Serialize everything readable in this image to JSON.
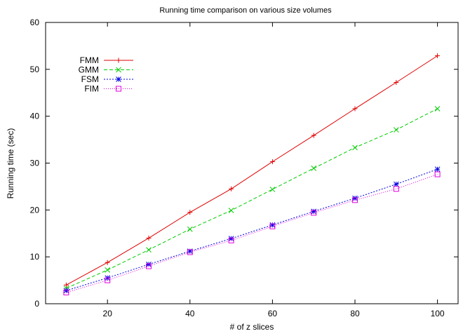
{
  "chart_data": {
    "type": "line",
    "title": "Running time comparison on various size volumes",
    "xlabel": "# of z slices",
    "ylabel": "Running time (sec)",
    "xlim": [
      5,
      105
    ],
    "ylim": [
      0,
      60
    ],
    "xticks": [
      20,
      40,
      60,
      80,
      100
    ],
    "yticks": [
      0,
      10,
      20,
      30,
      40,
      50,
      60
    ],
    "grid": false,
    "legend_position": "top-left",
    "x": [
      10,
      20,
      30,
      40,
      50,
      60,
      70,
      80,
      90,
      100
    ],
    "series": [
      {
        "name": "FMM",
        "color": "#e00000",
        "dash": "solid",
        "marker": "plus",
        "values": [
          4.0,
          8.8,
          14.0,
          19.5,
          24.5,
          30.3,
          35.9,
          41.6,
          47.2,
          52.9
        ]
      },
      {
        "name": "GMM",
        "color": "#00cc00",
        "dash": "dashed",
        "marker": "cross",
        "values": [
          3.3,
          7.2,
          11.5,
          15.9,
          19.9,
          24.4,
          28.9,
          33.3,
          37.1,
          41.6
        ]
      },
      {
        "name": "FSM",
        "color": "#0000e0",
        "dash": "dotted",
        "marker": "asterisk",
        "values": [
          2.8,
          5.5,
          8.4,
          11.2,
          13.9,
          16.8,
          19.7,
          22.5,
          25.5,
          28.7
        ]
      },
      {
        "name": "FIM",
        "color": "#e000e0",
        "dash": "dotted-fine",
        "marker": "square",
        "values": [
          2.4,
          5.0,
          8.0,
          11.0,
          13.5,
          16.5,
          19.4,
          22.1,
          24.5,
          27.6
        ]
      }
    ]
  }
}
